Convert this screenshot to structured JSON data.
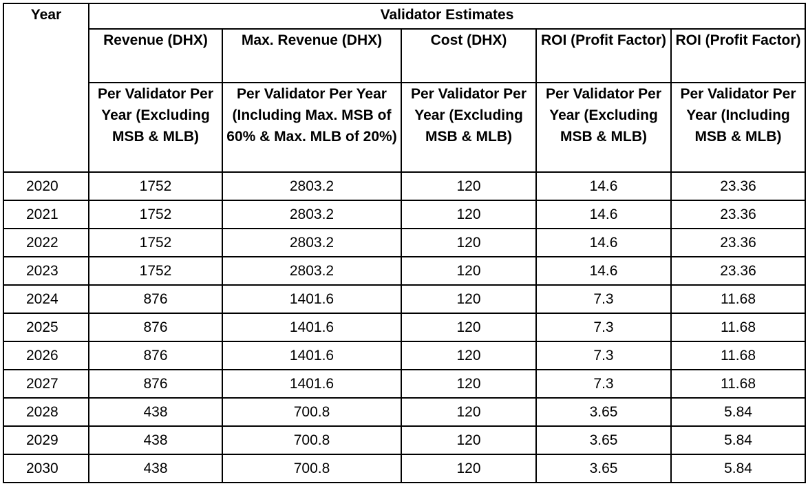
{
  "table": {
    "year_header": "Year",
    "group_header": "Validator Estimates",
    "column_titles": [
      "Revenue (DHX)",
      "Max. Revenue (DHX)",
      "Cost (DHX)",
      "ROI (Profit Factor)",
      "ROI (Profit Factor)"
    ],
    "column_subtitles": [
      "Per Validator Per Year (Excluding MSB & MLB)",
      "Per Validator Per Year (Including Max. MSB of 60% & Max. MLB of 20%)",
      "Per Validator Per Year (Excluding MSB & MLB)",
      "Per Validator Per Year (Excluding MSB & MLB)",
      "Per Validator Per Year (Including MSB & MLB)"
    ],
    "rows": [
      [
        "2020",
        "1752",
        "2803.2",
        "120",
        "14.6",
        "23.36"
      ],
      [
        "2021",
        "1752",
        "2803.2",
        "120",
        "14.6",
        "23.36"
      ],
      [
        "2022",
        "1752",
        "2803.2",
        "120",
        "14.6",
        "23.36"
      ],
      [
        "2023",
        "1752",
        "2803.2",
        "120",
        "14.6",
        "23.36"
      ],
      [
        "2024",
        "876",
        "1401.6",
        "120",
        "7.3",
        "11.68"
      ],
      [
        "2025",
        "876",
        "1401.6",
        "120",
        "7.3",
        "11.68"
      ],
      [
        "2026",
        "876",
        "1401.6",
        "120",
        "7.3",
        "11.68"
      ],
      [
        "2027",
        "876",
        "1401.6",
        "120",
        "7.3",
        "11.68"
      ],
      [
        "2028",
        "438",
        "700.8",
        "120",
        "3.65",
        "5.84"
      ],
      [
        "2029",
        "438",
        "700.8",
        "120",
        "3.65",
        "5.84"
      ],
      [
        "2030",
        "438",
        "700.8",
        "120",
        "3.65",
        "5.84"
      ]
    ]
  }
}
